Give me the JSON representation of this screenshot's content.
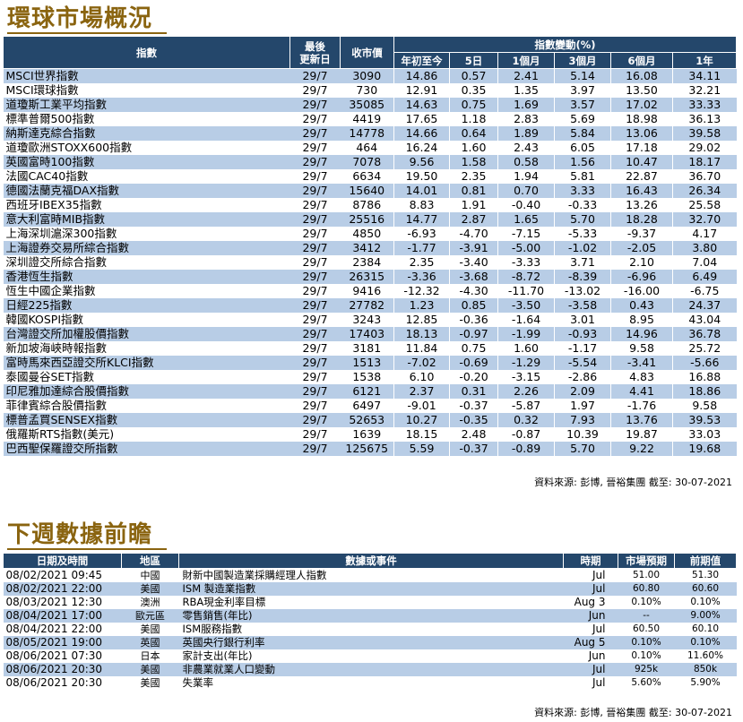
{
  "markets": {
    "title": "環球市場概況",
    "headers": {
      "index": "指數",
      "last_update": "最後\n更新日",
      "close": "收市價",
      "change_group": "指數變動(%)",
      "ytd": "年初至今",
      "d5": "5日",
      "m1": "1個月",
      "m3": "3個月",
      "m6": "6個月",
      "y1": "1年"
    },
    "rows": [
      {
        "name": "MSCI世界指數",
        "date": "29/7",
        "close": "3090",
        "ytd": "14.86",
        "d5": "0.57",
        "m1": "2.41",
        "m3": "5.14",
        "m6": "16.08",
        "y1": "34.11"
      },
      {
        "name": "MSCI環球指數",
        "date": "29/7",
        "close": "730",
        "ytd": "12.91",
        "d5": "0.35",
        "m1": "1.35",
        "m3": "3.97",
        "m6": "13.50",
        "y1": "32.21"
      },
      {
        "name": "道瓊斯工業平均指數",
        "date": "29/7",
        "close": "35085",
        "ytd": "14.63",
        "d5": "0.75",
        "m1": "1.69",
        "m3": "3.57",
        "m6": "17.02",
        "y1": "33.33"
      },
      {
        "name": "標準普爾500指數",
        "date": "29/7",
        "close": "4419",
        "ytd": "17.65",
        "d5": "1.18",
        "m1": "2.83",
        "m3": "5.69",
        "m6": "18.98",
        "y1": "36.13"
      },
      {
        "name": "納斯達克綜合指數",
        "date": "29/7",
        "close": "14778",
        "ytd": "14.66",
        "d5": "0.64",
        "m1": "1.89",
        "m3": "5.84",
        "m6": "13.06",
        "y1": "39.58"
      },
      {
        "name": "道瓊歐洲STOXX600指數",
        "date": "29/7",
        "close": "464",
        "ytd": "16.24",
        "d5": "1.60",
        "m1": "2.43",
        "m3": "6.05",
        "m6": "17.18",
        "y1": "29.02"
      },
      {
        "name": "英國富時100指數",
        "date": "29/7",
        "close": "7078",
        "ytd": "9.56",
        "d5": "1.58",
        "m1": "0.58",
        "m3": "1.56",
        "m6": "10.47",
        "y1": "18.17"
      },
      {
        "name": "法國CAC40指數",
        "date": "29/7",
        "close": "6634",
        "ytd": "19.50",
        "d5": "2.35",
        "m1": "1.94",
        "m3": "5.81",
        "m6": "22.87",
        "y1": "36.70"
      },
      {
        "name": "德國法蘭克福DAX指數",
        "date": "29/7",
        "close": "15640",
        "ytd": "14.01",
        "d5": "0.81",
        "m1": "0.70",
        "m3": "3.33",
        "m6": "16.43",
        "y1": "26.34"
      },
      {
        "name": "西班牙IBEX35指數",
        "date": "29/7",
        "close": "8786",
        "ytd": "8.83",
        "d5": "1.91",
        "m1": "-0.40",
        "m3": "-0.33",
        "m6": "13.26",
        "y1": "25.58"
      },
      {
        "name": "意大利富時MIB指數",
        "date": "29/7",
        "close": "25516",
        "ytd": "14.77",
        "d5": "2.87",
        "m1": "1.65",
        "m3": "5.70",
        "m6": "18.28",
        "y1": "32.70"
      },
      {
        "name": "上海深圳滬深300指數",
        "date": "29/7",
        "close": "4850",
        "ytd": "-6.93",
        "d5": "-4.70",
        "m1": "-7.15",
        "m3": "-5.33",
        "m6": "-9.37",
        "y1": "4.17"
      },
      {
        "name": "上海證券交易所綜合指數",
        "date": "29/7",
        "close": "3412",
        "ytd": "-1.77",
        "d5": "-3.91",
        "m1": "-5.00",
        "m3": "-1.02",
        "m6": "-2.05",
        "y1": "3.80"
      },
      {
        "name": "深圳證交所綜合指數",
        "date": "29/7",
        "close": "2384",
        "ytd": "2.35",
        "d5": "-3.40",
        "m1": "-3.33",
        "m3": "3.71",
        "m6": "2.10",
        "y1": "7.04"
      },
      {
        "name": "香港恆生指數",
        "date": "29/7",
        "close": "26315",
        "ytd": "-3.36",
        "d5": "-3.68",
        "m1": "-8.72",
        "m3": "-8.39",
        "m6": "-6.96",
        "y1": "6.49"
      },
      {
        "name": "恆生中國企業指數",
        "date": "29/7",
        "close": "9416",
        "ytd": "-12.32",
        "d5": "-4.30",
        "m1": "-11.70",
        "m3": "-13.02",
        "m6": "-16.00",
        "y1": "-6.75"
      },
      {
        "name": "日經225指數",
        "date": "29/7",
        "close": "27782",
        "ytd": "1.23",
        "d5": "0.85",
        "m1": "-3.50",
        "m3": "-3.58",
        "m6": "0.43",
        "y1": "24.37"
      },
      {
        "name": "韓國KOSPI指數",
        "date": "29/7",
        "close": "3243",
        "ytd": "12.85",
        "d5": "-0.36",
        "m1": "-1.64",
        "m3": "3.01",
        "m6": "8.95",
        "y1": "43.04"
      },
      {
        "name": "台灣證交所加權股價指數",
        "date": "29/7",
        "close": "17403",
        "ytd": "18.13",
        "d5": "-0.97",
        "m1": "-1.99",
        "m3": "-0.93",
        "m6": "14.96",
        "y1": "36.78"
      },
      {
        "name": "新加坡海峽時報指數",
        "date": "29/7",
        "close": "3181",
        "ytd": "11.84",
        "d5": "0.75",
        "m1": "1.60",
        "m3": "-1.17",
        "m6": "9.58",
        "y1": "25.72"
      },
      {
        "name": "富時馬來西亞證交所KLCI指數",
        "date": "29/7",
        "close": "1513",
        "ytd": "-7.02",
        "d5": "-0.69",
        "m1": "-1.29",
        "m3": "-5.54",
        "m6": "-3.41",
        "y1": "-5.66"
      },
      {
        "name": "泰國曼谷SET指數",
        "date": "29/7",
        "close": "1538",
        "ytd": "6.10",
        "d5": "-0.20",
        "m1": "-3.15",
        "m3": "-2.86",
        "m6": "4.83",
        "y1": "16.88"
      },
      {
        "name": "印尼雅加達綜合股價指數",
        "date": "29/7",
        "close": "6121",
        "ytd": "2.37",
        "d5": "0.31",
        "m1": "2.26",
        "m3": "2.09",
        "m6": "4.41",
        "y1": "18.86"
      },
      {
        "name": "菲律賓綜合股價指數",
        "date": "29/7",
        "close": "6497",
        "ytd": "-9.01",
        "d5": "-0.37",
        "m1": "-5.87",
        "m3": "1.97",
        "m6": "-1.76",
        "y1": "9.58"
      },
      {
        "name": "標普孟買SENSEX指數",
        "date": "29/7",
        "close": "52653",
        "ytd": "10.27",
        "d5": "-0.35",
        "m1": "0.32",
        "m3": "7.93",
        "m6": "13.76",
        "y1": "39.53"
      },
      {
        "name": "俄羅斯RTS指數(美元)",
        "date": "29/7",
        "close": "1639",
        "ytd": "18.15",
        "d5": "2.48",
        "m1": "-0.87",
        "m3": "10.39",
        "m6": "19.87",
        "y1": "33.03"
      },
      {
        "name": "巴西聖保羅證交所指數",
        "date": "29/7",
        "close": "125675",
        "ytd": "5.59",
        "d5": "-0.37",
        "m1": "-0.89",
        "m3": "5.70",
        "m6": "9.22",
        "y1": "19.68"
      }
    ],
    "source": "資料來源: 彭博, 晉裕集團 截至: 30-07-2021"
  },
  "events": {
    "title": "下週數據前瞻",
    "headers": {
      "datetime": "日期及時間",
      "region": "地區",
      "event": "數據或事件",
      "period": "時期",
      "forecast": "市場預期",
      "previous": "前期值"
    },
    "rows": [
      {
        "datetime": "08/02/2021 09:45",
        "region": "中國",
        "event": "財新中國製造業採購經理人指數",
        "period": "Jul",
        "forecast": "51.00",
        "previous": "51.30"
      },
      {
        "datetime": "08/02/2021 22:00",
        "region": "美國",
        "event": "ISM 製造業指數",
        "period": "Jul",
        "forecast": "60.80",
        "previous": "60.60"
      },
      {
        "datetime": "08/03/2021 12:30",
        "region": "澳洲",
        "event": "RBA現金利率目標",
        "period": "Aug 3",
        "forecast": "0.10%",
        "previous": "0.10%"
      },
      {
        "datetime": "08/04/2021 17:00",
        "region": "歐元區",
        "event": "零售銷售(年比)",
        "period": "Jun",
        "forecast": "--",
        "previous": "9.00%"
      },
      {
        "datetime": "08/04/2021 22:00",
        "region": "美國",
        "event": "ISM服務指數",
        "period": "Jul",
        "forecast": "60.50",
        "previous": "60.10"
      },
      {
        "datetime": "08/05/2021 19:00",
        "region": "英國",
        "event": "英國央行銀行利率",
        "period": "Aug 5",
        "forecast": "0.10%",
        "previous": "0.10%"
      },
      {
        "datetime": "08/06/2021 07:30",
        "region": "日本",
        "event": "家計支出(年比)",
        "period": "Jun",
        "forecast": "0.10%",
        "previous": "11.60%"
      },
      {
        "datetime": "08/06/2021 20:30",
        "region": "美國",
        "event": "非農業就業人口變動",
        "period": "Jul",
        "forecast": "925k",
        "previous": "850k"
      },
      {
        "datetime": "08/06/2021 20:30",
        "region": "美國",
        "event": "失業率",
        "period": "Jul",
        "forecast": "5.60%",
        "previous": "5.90%"
      }
    ],
    "source": "資料來源: 彭博, 晉裕集團 截至: 30-07-2021"
  }
}
